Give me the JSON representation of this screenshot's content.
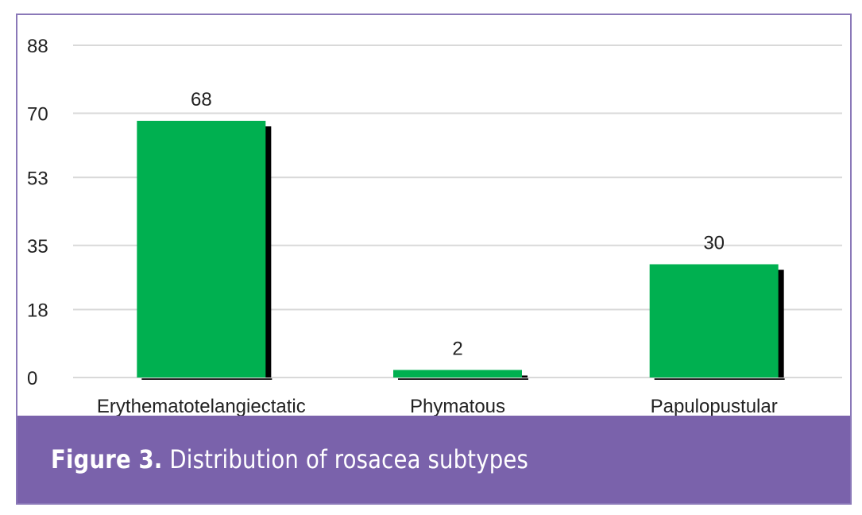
{
  "figure": {
    "caption_label": "Figure 3.",
    "caption_text": " Distribution of rosacea subtypes"
  },
  "colors": {
    "bar": "#00b050",
    "bar_shadow": "#000000",
    "grid": "#d9d9d9",
    "frame": "#8a78b8",
    "caption_band": "#7a62ab"
  },
  "chart_data": {
    "type": "bar",
    "categories": [
      "Erythematotelangiectatic",
      "Phymatous",
      "Papulopustular"
    ],
    "values": [
      68,
      2,
      30
    ],
    "data_labels": [
      "68",
      "2",
      "30"
    ],
    "yticks": [
      0,
      18,
      35,
      53,
      70,
      88
    ],
    "ylim": [
      0,
      88
    ],
    "title": "",
    "xlabel": "",
    "ylabel": "",
    "grid": true,
    "legend": "none"
  }
}
